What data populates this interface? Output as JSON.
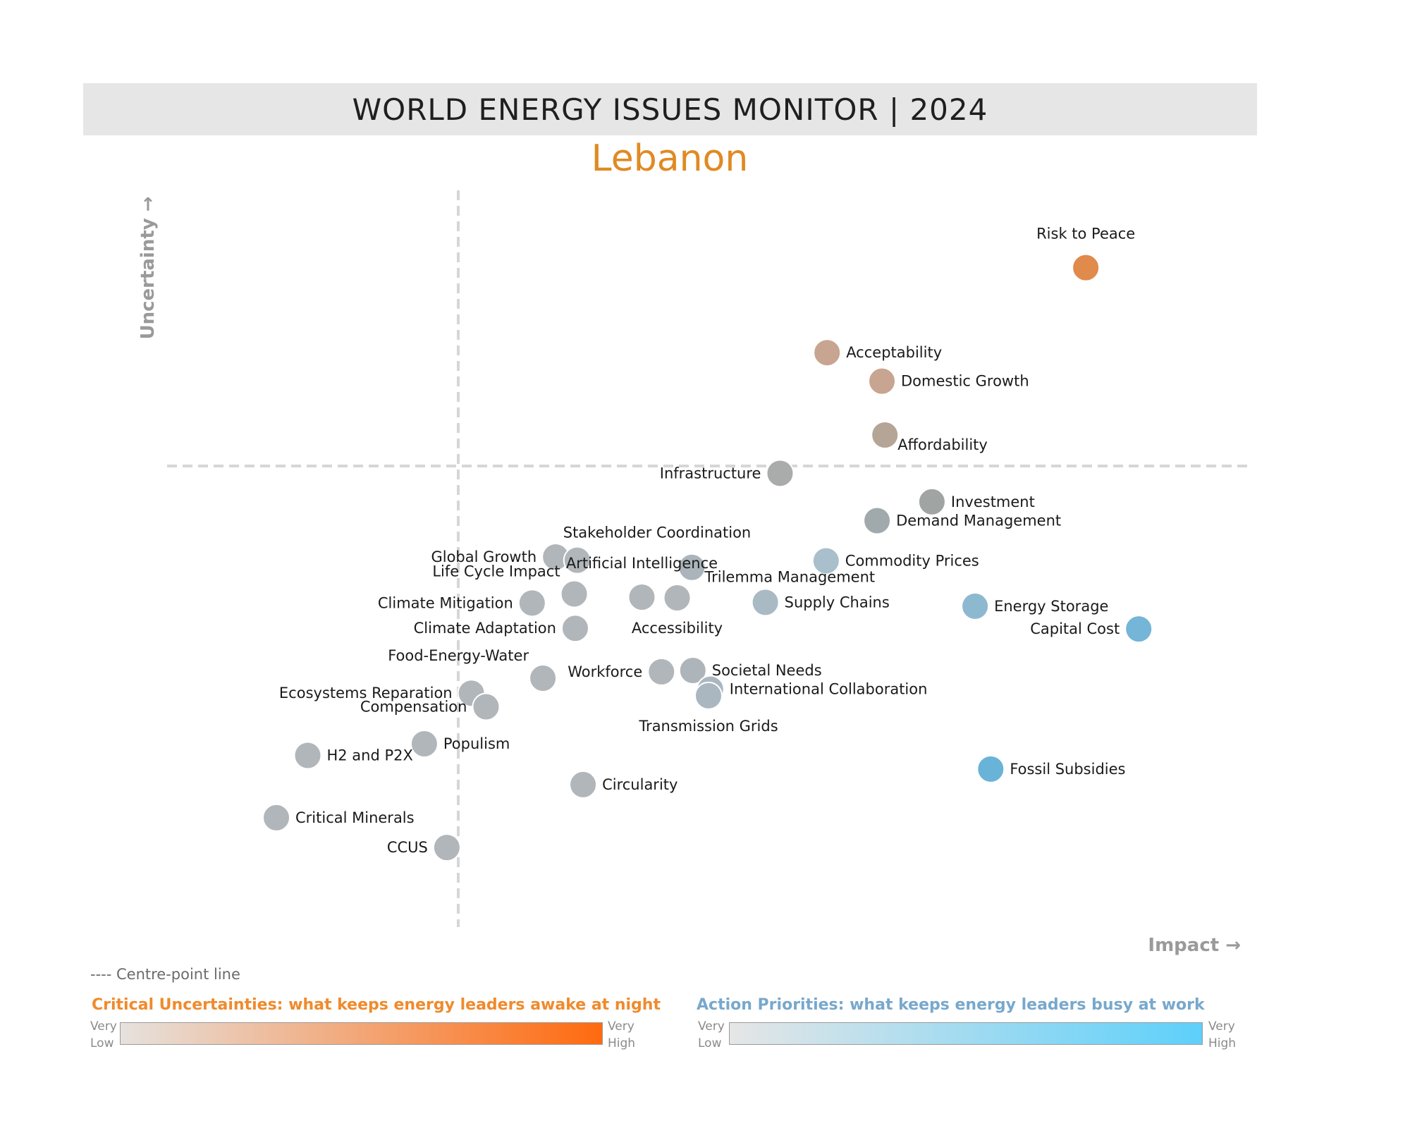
{
  "header": {
    "title": "WORLD ENERGY ISSUES MONITOR | 2024",
    "country": "Lebanon"
  },
  "chart_data": {
    "type": "scatter",
    "xlabel": "Impact →",
    "ylabel": "Uncertainty →",
    "xlim": [
      0,
      100
    ],
    "ylim": [
      0,
      100
    ],
    "centre_point": {
      "x": 26.9,
      "y": 60.2
    },
    "grid": false,
    "points": [
      {
        "name": "Risk to Peace",
        "x": 88.5,
        "y": 94.6,
        "color": "#e08a4c",
        "label_pos": "top"
      },
      {
        "name": "Acceptability",
        "x": 62.1,
        "y": 81.5,
        "color": "#c8a590",
        "label_pos": "right"
      },
      {
        "name": "Domestic Growth",
        "x": 67.7,
        "y": 77.1,
        "color": "#c8a590",
        "label_pos": "right"
      },
      {
        "name": "Affordability",
        "x": 68.0,
        "y": 68.8,
        "color": "#b5a597",
        "label_pos": "below-right"
      },
      {
        "name": "Infrastructure",
        "x": 57.3,
        "y": 62.9,
        "color": "#a9acab",
        "label_pos": "left"
      },
      {
        "name": "Investment",
        "x": 72.8,
        "y": 58.5,
        "color": "#a0a5a4",
        "label_pos": "right"
      },
      {
        "name": "Demand Management",
        "x": 67.2,
        "y": 55.6,
        "color": "#a0aaac",
        "label_pos": "right"
      },
      {
        "name": "Commodity Prices",
        "x": 62.0,
        "y": 49.4,
        "color": "#a9c0cc",
        "label_pos": "right"
      },
      {
        "name": "Global Growth",
        "x": 34.4,
        "y": 50.0,
        "color": "#b1b6ba",
        "label_pos": "left"
      },
      {
        "name": "Stakeholder Coordination",
        "x": 36.6,
        "y": 49.5,
        "color": "#b1b6ba",
        "label_pos": "top-right"
      },
      {
        "name": "Trilemma Management",
        "x": 48.3,
        "y": 48.4,
        "color": "#aab4ba",
        "label_pos": "below-right"
      },
      {
        "name": "Life Cycle Impact",
        "x": 36.3,
        "y": 44.3,
        "color": "#b1b6ba",
        "label_pos": "top-left"
      },
      {
        "name": "Artificial Intelligence",
        "x": 43.2,
        "y": 43.8,
        "color": "#b1b6ba",
        "label_pos": "top"
      },
      {
        "name": "Accessibility",
        "x": 46.8,
        "y": 43.7,
        "color": "#b1b6ba",
        "label_pos": "below"
      },
      {
        "name": "Supply Chains",
        "x": 55.8,
        "y": 43.0,
        "color": "#aabac4",
        "label_pos": "right"
      },
      {
        "name": "Climate Mitigation",
        "x": 32.0,
        "y": 42.9,
        "color": "#b1b6ba",
        "label_pos": "left"
      },
      {
        "name": "Climate Adaptation",
        "x": 36.4,
        "y": 39.0,
        "color": "#b1b6ba",
        "label_pos": "left"
      },
      {
        "name": "Energy Storage",
        "x": 77.2,
        "y": 42.4,
        "color": "#8db9d0",
        "label_pos": "right"
      },
      {
        "name": "Capital Cost",
        "x": 93.9,
        "y": 38.9,
        "color": "#74b5d8",
        "label_pos": "left"
      },
      {
        "name": "Workforce",
        "x": 45.2,
        "y": 32.3,
        "color": "#b1b6ba",
        "label_pos": "left"
      },
      {
        "name": "Societal Needs",
        "x": 48.4,
        "y": 32.5,
        "color": "#aeb5ba",
        "label_pos": "right"
      },
      {
        "name": "Food-Energy-Water",
        "x": 33.1,
        "y": 31.3,
        "color": "#b1b6ba",
        "label_pos": "top-left"
      },
      {
        "name": "International Collaboration",
        "x": 50.2,
        "y": 29.6,
        "color": "#aab7c0",
        "label_pos": "right"
      },
      {
        "name": "Transmission Grids",
        "x": 50.0,
        "y": 28.6,
        "color": "#aab7c0",
        "label_pos": "below"
      },
      {
        "name": "Ecosystems Reparation",
        "x": 25.8,
        "y": 29.0,
        "color": "#b1b6ba",
        "label_pos": "left"
      },
      {
        "name": "Compensation",
        "x": 27.3,
        "y": 26.9,
        "color": "#b1b6ba",
        "label_pos": "left"
      },
      {
        "name": "Populism",
        "x": 21.0,
        "y": 21.2,
        "color": "#b1b6ba",
        "label_pos": "right"
      },
      {
        "name": "H2 and P2X",
        "x": 9.1,
        "y": 19.4,
        "color": "#b1b6ba",
        "label_pos": "right"
      },
      {
        "name": "Fossil Subsidies",
        "x": 78.8,
        "y": 17.3,
        "color": "#6ab3d8",
        "label_pos": "right"
      },
      {
        "name": "Circularity",
        "x": 37.2,
        "y": 14.9,
        "color": "#b1b6ba",
        "label_pos": "right"
      },
      {
        "name": "Critical Minerals",
        "x": 5.9,
        "y": 9.8,
        "color": "#b1b6ba",
        "label_pos": "right"
      },
      {
        "name": "CCUS",
        "x": 23.3,
        "y": 5.2,
        "color": "#b1b6ba",
        "label_pos": "left"
      }
    ]
  },
  "legend": {
    "centre_note": "---- Centre-point line",
    "uncertainties_title": "Critical Uncertainties: what keeps energy leaders awake at night",
    "priorities_title": "Action Priorities: what keeps energy leaders busy at work",
    "very_low": [
      "Very",
      "Low"
    ],
    "very_high": [
      "Very",
      "High"
    ],
    "uncertainty_colors": [
      "#e6e2de",
      "#ff6a0f"
    ],
    "priority_colors": [
      "#e6e6e6",
      "#5dd0fb"
    ]
  }
}
